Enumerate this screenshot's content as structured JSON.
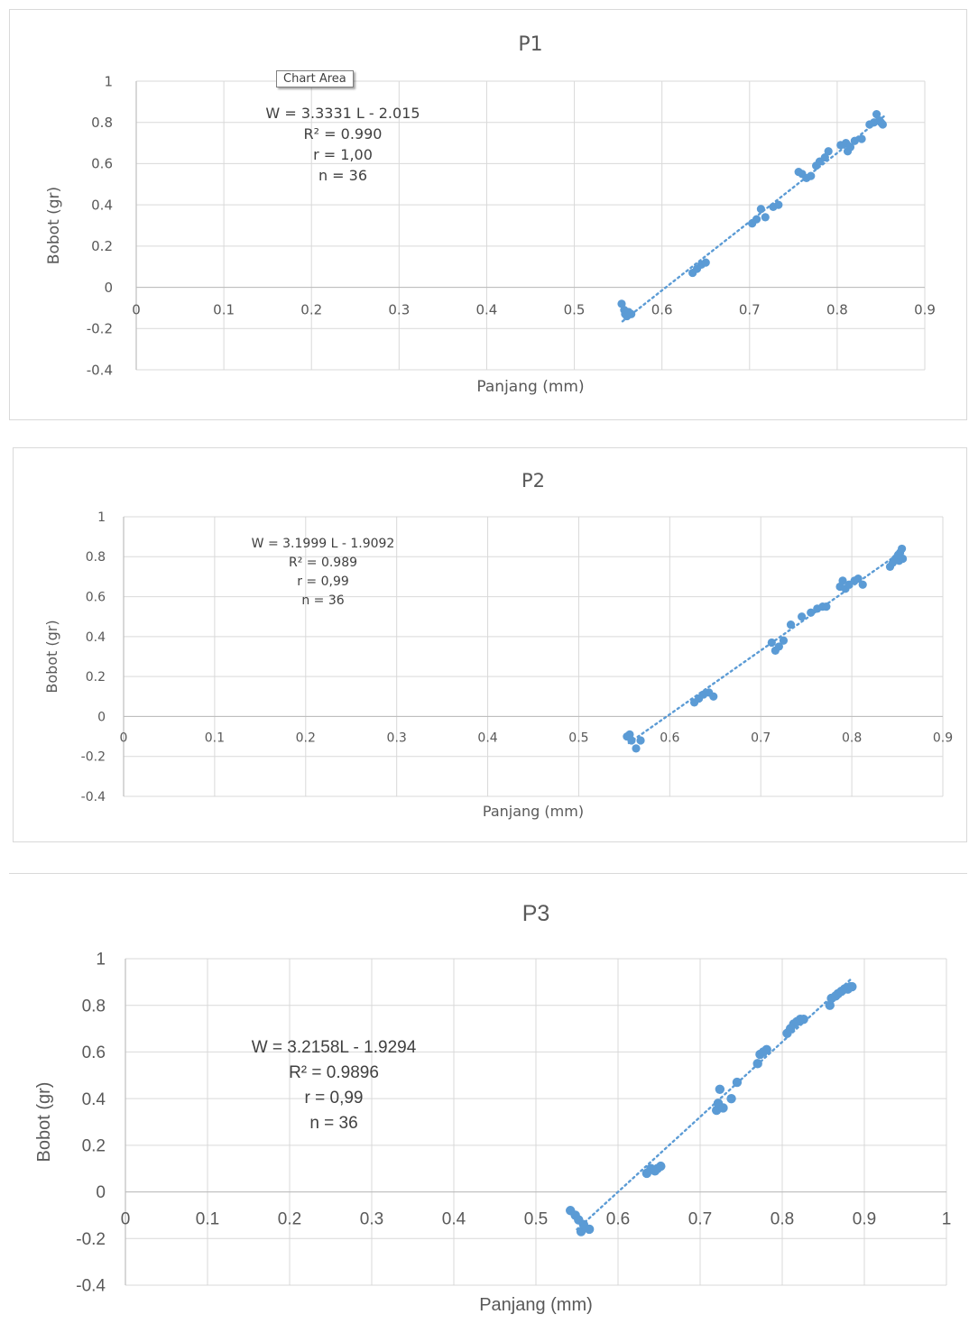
{
  "tooltip": {
    "label": "Chart Area"
  },
  "chart_data": [
    {
      "type": "scatter",
      "title": "P1",
      "xlabel": "Panjang (mm)",
      "ylabel": "Bobot (gr)",
      "xlim": [
        0,
        0.9
      ],
      "ylim": [
        -0.4,
        1
      ],
      "xticks": [
        "0",
        "0.1",
        "0.2",
        "0.3",
        "0.4",
        "0.5",
        "0.6",
        "0.7",
        "0.8",
        "0.9"
      ],
      "yticks": [
        "1",
        "0.8",
        "0.6",
        "0.4",
        "0.2",
        "0",
        "-0.2",
        "-0.4"
      ],
      "grid": true,
      "marker_color": "#5b9bd5",
      "trendline": {
        "slope": 3.3331,
        "intercept": -2.015,
        "x_range": [
          0.555,
          0.855
        ],
        "style": "dotted",
        "color": "#5b9bd5"
      },
      "equation_lines": [
        "W = 3.3331 L - 2.015",
        "R² = 0.990",
        "r = 1,00",
        "n = 36"
      ],
      "points": [
        [
          0.554,
          -0.08
        ],
        [
          0.557,
          -0.11
        ],
        [
          0.558,
          -0.13
        ],
        [
          0.56,
          -0.14
        ],
        [
          0.562,
          -0.12
        ],
        [
          0.565,
          -0.13
        ],
        [
          0.635,
          0.07
        ],
        [
          0.64,
          0.09
        ],
        [
          0.645,
          0.11
        ],
        [
          0.65,
          0.12
        ],
        [
          0.703,
          0.31
        ],
        [
          0.708,
          0.33
        ],
        [
          0.713,
          0.38
        ],
        [
          0.718,
          0.34
        ],
        [
          0.727,
          0.39
        ],
        [
          0.733,
          0.4
        ],
        [
          0.756,
          0.56
        ],
        [
          0.76,
          0.55
        ],
        [
          0.765,
          0.53
        ],
        [
          0.77,
          0.54
        ],
        [
          0.776,
          0.59
        ],
        [
          0.78,
          0.61
        ],
        [
          0.786,
          0.63
        ],
        [
          0.79,
          0.66
        ],
        [
          0.804,
          0.69
        ],
        [
          0.81,
          0.7
        ],
        [
          0.812,
          0.66
        ],
        [
          0.815,
          0.68
        ],
        [
          0.82,
          0.71
        ],
        [
          0.828,
          0.72
        ],
        [
          0.837,
          0.79
        ],
        [
          0.842,
          0.8
        ],
        [
          0.845,
          0.84
        ],
        [
          0.848,
          0.81
        ],
        [
          0.85,
          0.8
        ],
        [
          0.852,
          0.79
        ]
      ]
    },
    {
      "type": "scatter",
      "title": "P2",
      "xlabel": "Panjang (mm)",
      "ylabel": "Bobot (gr)",
      "xlim": [
        0,
        0.9
      ],
      "ylim": [
        -0.4,
        1
      ],
      "xticks": [
        "0",
        "0.1",
        "0.2",
        "0.3",
        "0.4",
        "0.5",
        "0.6",
        "0.7",
        "0.8",
        "0.9"
      ],
      "yticks": [
        "1",
        "0.8",
        "0.6",
        "0.4",
        "0.2",
        "0",
        "-0.2",
        "-0.4"
      ],
      "grid": true,
      "marker_color": "#5b9bd5",
      "trendline": {
        "slope": 3.1999,
        "intercept": -1.9092,
        "x_range": [
          0.555,
          0.858
        ],
        "style": "dotted",
        "color": "#5b9bd5"
      },
      "equation_lines": [
        "W = 3.1999 L - 1.9092",
        "R² = 0.989",
        "r = 0,99",
        "n = 36"
      ],
      "points": [
        [
          0.553,
          -0.1
        ],
        [
          0.556,
          -0.09
        ],
        [
          0.558,
          -0.12
        ],
        [
          0.563,
          -0.16
        ],
        [
          0.568,
          -0.12
        ],
        [
          0.627,
          0.07
        ],
        [
          0.632,
          0.09
        ],
        [
          0.637,
          0.11
        ],
        [
          0.643,
          0.12
        ],
        [
          0.648,
          0.1
        ],
        [
          0.712,
          0.37
        ],
        [
          0.716,
          0.33
        ],
        [
          0.72,
          0.35
        ],
        [
          0.725,
          0.38
        ],
        [
          0.733,
          0.46
        ],
        [
          0.745,
          0.5
        ],
        [
          0.755,
          0.52
        ],
        [
          0.762,
          0.54
        ],
        [
          0.768,
          0.55
        ],
        [
          0.772,
          0.55
        ],
        [
          0.787,
          0.65
        ],
        [
          0.79,
          0.68
        ],
        [
          0.793,
          0.64
        ],
        [
          0.797,
          0.66
        ],
        [
          0.803,
          0.68
        ],
        [
          0.807,
          0.69
        ],
        [
          0.812,
          0.66
        ],
        [
          0.842,
          0.75
        ],
        [
          0.845,
          0.77
        ],
        [
          0.848,
          0.79
        ],
        [
          0.85,
          0.8
        ],
        [
          0.852,
          0.78
        ],
        [
          0.853,
          0.82
        ],
        [
          0.855,
          0.84
        ],
        [
          0.856,
          0.79
        ],
        [
          0.851,
          0.81
        ]
      ]
    },
    {
      "type": "scatter",
      "title": "P3",
      "xlabel": "Panjang (mm)",
      "ylabel": "Bobot (gr)",
      "xlim": [
        0,
        1
      ],
      "ylim": [
        -0.4,
        1
      ],
      "xticks": [
        "0",
        "0.1",
        "0.2",
        "0.3",
        "0.4",
        "0.5",
        "0.6",
        "0.7",
        "0.8",
        "0.9",
        "1"
      ],
      "yticks": [
        "1",
        "0.8",
        "0.6",
        "0.4",
        "0.2",
        "0",
        "-0.2",
        "-0.4"
      ],
      "grid": true,
      "marker_color": "#5b9bd5",
      "trendline": {
        "slope": 3.2158,
        "intercept": -1.9294,
        "x_range": [
          0.55,
          0.885
        ],
        "style": "dotted",
        "color": "#5b9bd5"
      },
      "equation_lines": [
        "W = 3.2158L - 1.9294",
        "R² = 0.9896",
        "r = 0,99",
        "n = 36"
      ],
      "points": [
        [
          0.542,
          -0.08
        ],
        [
          0.548,
          -0.1
        ],
        [
          0.552,
          -0.12
        ],
        [
          0.555,
          -0.17
        ],
        [
          0.558,
          -0.14
        ],
        [
          0.565,
          -0.16
        ],
        [
          0.635,
          0.08
        ],
        [
          0.64,
          0.1
        ],
        [
          0.645,
          0.09
        ],
        [
          0.648,
          0.1
        ],
        [
          0.652,
          0.11
        ],
        [
          0.72,
          0.35
        ],
        [
          0.722,
          0.38
        ],
        [
          0.724,
          0.44
        ],
        [
          0.728,
          0.36
        ],
        [
          0.738,
          0.4
        ],
        [
          0.745,
          0.47
        ],
        [
          0.77,
          0.55
        ],
        [
          0.773,
          0.59
        ],
        [
          0.777,
          0.6
        ],
        [
          0.781,
          0.61
        ],
        [
          0.806,
          0.68
        ],
        [
          0.81,
          0.7
        ],
        [
          0.814,
          0.72
        ],
        [
          0.818,
          0.73
        ],
        [
          0.822,
          0.74
        ],
        [
          0.826,
          0.74
        ],
        [
          0.858,
          0.8
        ],
        [
          0.86,
          0.83
        ],
        [
          0.865,
          0.84
        ],
        [
          0.868,
          0.85
        ],
        [
          0.872,
          0.86
        ],
        [
          0.876,
          0.87
        ],
        [
          0.88,
          0.87
        ],
        [
          0.883,
          0.88
        ],
        [
          0.885,
          0.88
        ]
      ]
    }
  ]
}
